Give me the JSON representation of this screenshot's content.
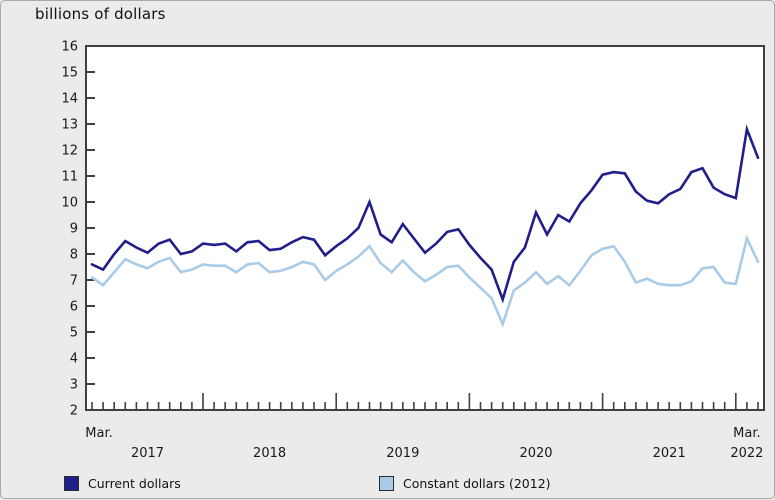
{
  "title": "billions of dollars",
  "colors": {
    "background": "#ebebeb",
    "plot_background": "#ffffff",
    "axis": "#404040",
    "text": "#1a1a1a",
    "current_dollars": "#211e8c",
    "constant_dollars": "#a9cbe7"
  },
  "chart_data": {
    "type": "line",
    "title": "billions of dollars",
    "x_frequency": "monthly",
    "x_start": "Mar. 2017",
    "x_end": "Mar. 2022",
    "ylim": [
      2,
      16
    ],
    "grid": false,
    "legend_position": "bottom",
    "y_axis": {
      "ticks": [
        16,
        15,
        14,
        13,
        12,
        11,
        10,
        9,
        8,
        7,
        6,
        5,
        4,
        3,
        2
      ]
    },
    "x_axis": {
      "start_label": "Mar.",
      "end_label": "Mar.",
      "year_labels": [
        "2017",
        "2018",
        "2019",
        "2020",
        "2021",
        "2022"
      ],
      "minor_tick": "every month",
      "major_tick": "every January"
    },
    "series": [
      {
        "name": "Current dollars",
        "color": "#211e8c",
        "values": [
          7.6,
          7.4,
          8.0,
          8.5,
          8.25,
          8.05,
          8.4,
          8.55,
          8.0,
          8.1,
          8.4,
          8.35,
          8.4,
          8.1,
          8.45,
          8.5,
          8.15,
          8.2,
          8.45,
          8.65,
          8.55,
          7.95,
          8.3,
          8.6,
          9.0,
          10.0,
          8.75,
          8.45,
          9.15,
          8.6,
          8.05,
          8.4,
          8.85,
          8.95,
          8.35,
          7.85,
          7.4,
          6.25,
          7.7,
          8.25,
          9.6,
          8.75,
          9.5,
          9.25,
          9.95,
          10.45,
          11.05,
          11.15,
          11.1,
          10.4,
          10.05,
          9.95,
          10.3,
          10.5,
          11.15,
          11.3,
          10.55,
          10.3,
          10.15,
          12.8,
          11.7
        ]
      },
      {
        "name": "Constant dollars (2012)",
        "color": "#a9cbe7",
        "values": [
          7.1,
          6.8,
          7.3,
          7.8,
          7.6,
          7.45,
          7.7,
          7.85,
          7.3,
          7.4,
          7.6,
          7.55,
          7.55,
          7.3,
          7.6,
          7.65,
          7.3,
          7.35,
          7.5,
          7.7,
          7.6,
          7.0,
          7.35,
          7.6,
          7.9,
          8.3,
          7.65,
          7.3,
          7.75,
          7.3,
          6.95,
          7.2,
          7.5,
          7.55,
          7.1,
          6.7,
          6.3,
          5.3,
          6.6,
          6.9,
          7.3,
          6.85,
          7.15,
          6.8,
          7.35,
          7.95,
          8.2,
          8.3,
          7.7,
          6.9,
          7.05,
          6.85,
          6.8,
          6.8,
          6.95,
          7.45,
          7.5,
          6.9,
          6.85,
          8.6,
          7.7
        ]
      }
    ]
  },
  "legend": {
    "items": [
      {
        "label": "Current dollars",
        "color": "#211e8c"
      },
      {
        "label": "Constant dollars (2012)",
        "color": "#a9cbe7"
      }
    ]
  }
}
